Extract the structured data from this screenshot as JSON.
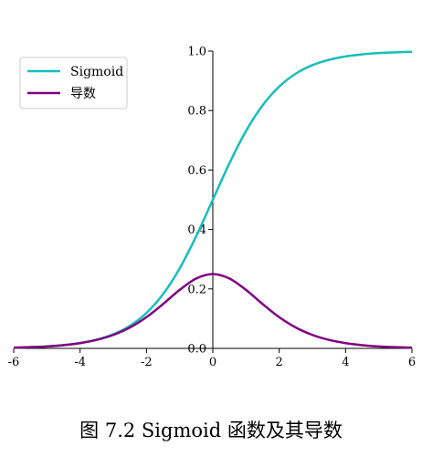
{
  "caption": "图 7.2 Sigmoid 函数及其导数",
  "chart_data": {
    "type": "line",
    "title": "",
    "xlabel": "",
    "ylabel": "",
    "xlim": [
      -6,
      6
    ],
    "ylim": [
      0,
      1
    ],
    "xticks": [
      -6,
      -4,
      -2,
      0,
      2,
      4,
      6
    ],
    "xtick_labels": [
      "-6",
      "-4",
      "-2",
      "0",
      "2",
      "4",
      "6"
    ],
    "yticks": [
      0,
      0.2,
      0.4,
      0.6,
      0.8,
      1.0
    ],
    "ytick_labels": [
      "0.0",
      "0.2",
      "0.4",
      "0.6",
      "0.8",
      "1.0"
    ],
    "grid": false,
    "legend_position": "top-left",
    "x": [
      -6,
      -5.5,
      -5,
      -4.5,
      -4,
      -3.5,
      -3,
      -2.5,
      -2,
      -1.5,
      -1,
      -0.5,
      0,
      0.5,
      1,
      1.5,
      2,
      2.5,
      3,
      3.5,
      4,
      4.5,
      5,
      5.5,
      6
    ],
    "series": [
      {
        "name": "Sigmoid",
        "color": "#17BEBB",
        "values": [
          0.0025,
          0.0041,
          0.0067,
          0.011,
          0.018,
          0.0293,
          0.0474,
          0.0759,
          0.1192,
          0.1824,
          0.2689,
          0.3775,
          0.5,
          0.6225,
          0.7311,
          0.8176,
          0.8808,
          0.9241,
          0.9526,
          0.9707,
          0.982,
          0.989,
          0.9933,
          0.9959,
          0.9975
        ]
      },
      {
        "name": "导数",
        "color": "#800080",
        "values": [
          0.0025,
          0.0041,
          0.0066,
          0.0109,
          0.0177,
          0.0285,
          0.0452,
          0.0701,
          0.105,
          0.1491,
          0.1966,
          0.235,
          0.25,
          0.235,
          0.1966,
          0.1491,
          0.105,
          0.0701,
          0.0452,
          0.0285,
          0.0177,
          0.0109,
          0.0066,
          0.0041,
          0.0025
        ]
      }
    ]
  }
}
